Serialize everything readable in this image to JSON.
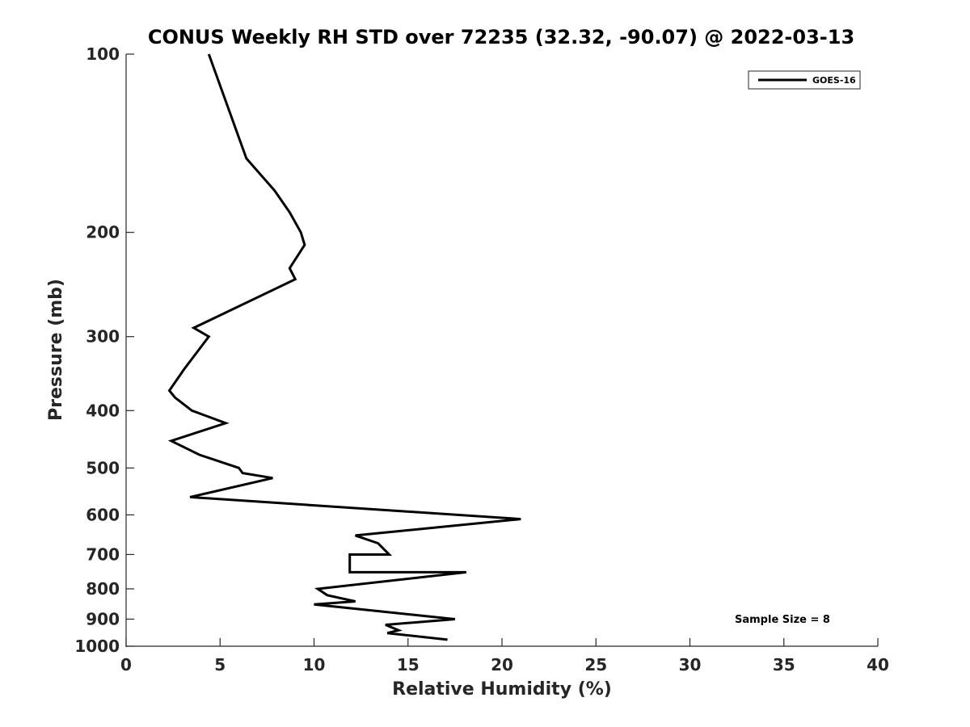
{
  "chart_data": {
    "type": "line",
    "title": "CONUS Weekly RH STD over 72235 (32.32, -90.07) @ 2022-03-13",
    "xlabel": "Relative Humidity (%)",
    "ylabel": "Pressure (mb)",
    "xlim": [
      0,
      40
    ],
    "ylim": [
      100,
      1000
    ],
    "yscale": "log",
    "y_reversed": true,
    "grid": false,
    "legend_position": "top-right",
    "xticks": [
      0,
      5,
      10,
      15,
      20,
      25,
      30,
      35,
      40
    ],
    "xtick_labels": [
      "0",
      "5",
      "10",
      "15",
      "20",
      "25",
      "30",
      "35",
      "40"
    ],
    "yticks": [
      100,
      200,
      300,
      400,
      500,
      600,
      700,
      800,
      900,
      1000
    ],
    "ytick_labels": [
      "100",
      "200",
      "300",
      "400",
      "500",
      "600",
      "700",
      "800",
      "900",
      "1000"
    ],
    "series": [
      {
        "name": "GOES-16",
        "color": "#000000",
        "points": [
          {
            "x": 4.4,
            "p": 100
          },
          {
            "x": 6.4,
            "p": 150
          },
          {
            "x": 7.9,
            "p": 170
          },
          {
            "x": 8.7,
            "p": 185
          },
          {
            "x": 9.3,
            "p": 200
          },
          {
            "x": 9.5,
            "p": 210
          },
          {
            "x": 8.7,
            "p": 230
          },
          {
            "x": 9.0,
            "p": 240
          },
          {
            "x": 3.6,
            "p": 290
          },
          {
            "x": 4.4,
            "p": 300
          },
          {
            "x": 3.1,
            "p": 340
          },
          {
            "x": 2.3,
            "p": 370
          },
          {
            "x": 2.6,
            "p": 380
          },
          {
            "x": 3.5,
            "p": 400
          },
          {
            "x": 5.3,
            "p": 420
          },
          {
            "x": 2.4,
            "p": 450
          },
          {
            "x": 3.9,
            "p": 475
          },
          {
            "x": 6.0,
            "p": 500
          },
          {
            "x": 6.2,
            "p": 510
          },
          {
            "x": 7.8,
            "p": 520
          },
          {
            "x": 3.4,
            "p": 560
          },
          {
            "x": 21.0,
            "p": 610
          },
          {
            "x": 12.2,
            "p": 650
          },
          {
            "x": 13.4,
            "p": 670
          },
          {
            "x": 14.0,
            "p": 700
          },
          {
            "x": 11.9,
            "p": 700
          },
          {
            "x": 11.9,
            "p": 750
          },
          {
            "x": 18.1,
            "p": 750
          },
          {
            "x": 10.2,
            "p": 800
          },
          {
            "x": 10.7,
            "p": 820
          },
          {
            "x": 12.2,
            "p": 840
          },
          {
            "x": 10.0,
            "p": 850
          },
          {
            "x": 17.5,
            "p": 900
          },
          {
            "x": 13.8,
            "p": 920
          },
          {
            "x": 14.5,
            "p": 940
          },
          {
            "x": 13.9,
            "p": 950
          },
          {
            "x": 17.1,
            "p": 975
          }
        ]
      }
    ],
    "annotations": [
      "Sample Size = 8"
    ]
  }
}
